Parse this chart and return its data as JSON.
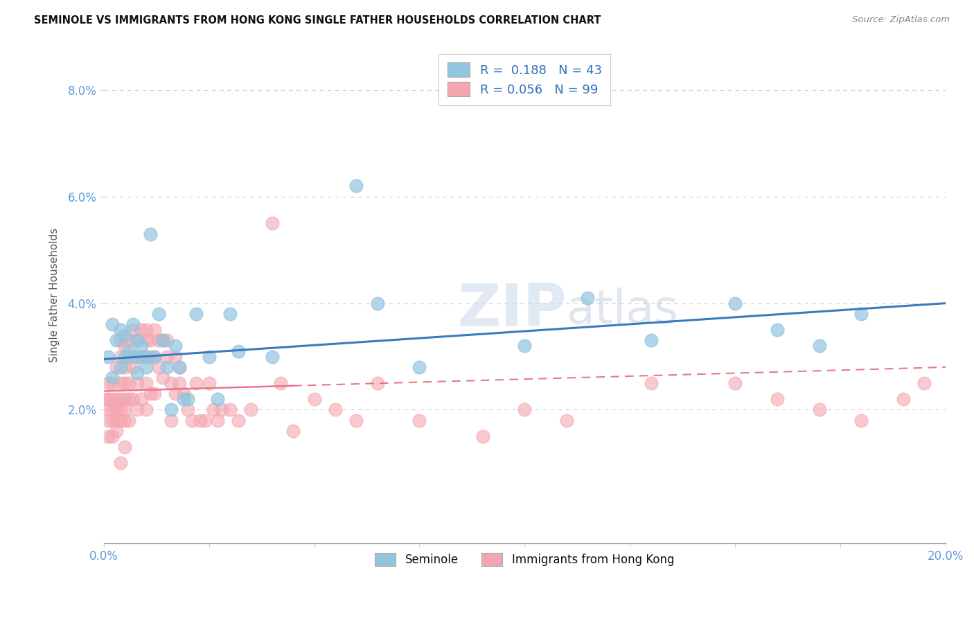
{
  "title": "SEMINOLE VS IMMIGRANTS FROM HONG KONG SINGLE FATHER HOUSEHOLDS CORRELATION CHART",
  "source": "Source: ZipAtlas.com",
  "ylabel": "Single Father Households",
  "xlim": [
    0.0,
    0.2
  ],
  "ylim": [
    -0.005,
    0.088
  ],
  "yticks": [
    0.02,
    0.04,
    0.06,
    0.08
  ],
  "ytick_labels": [
    "2.0%",
    "4.0%",
    "6.0%",
    "8.0%"
  ],
  "xticks": [
    0.0,
    0.025,
    0.05,
    0.075,
    0.1,
    0.125,
    0.15,
    0.175,
    0.2
  ],
  "legend_r_blue": "R =  0.188",
  "legend_n_blue": "N = 43",
  "legend_r_pink": "R = 0.056",
  "legend_n_pink": "N = 99",
  "seminole_color": "#92c5de",
  "immigrants_color": "#f4a6b0",
  "trend_blue_color": "#3a7bbf",
  "trend_pink_color": "#e8768a",
  "watermark_color": "#d0dde8",
  "seminole_x": [
    0.001,
    0.002,
    0.002,
    0.003,
    0.004,
    0.004,
    0.005,
    0.005,
    0.006,
    0.007,
    0.007,
    0.008,
    0.008,
    0.009,
    0.009,
    0.01,
    0.01,
    0.011,
    0.012,
    0.013,
    0.014,
    0.015,
    0.016,
    0.017,
    0.018,
    0.019,
    0.02,
    0.022,
    0.025,
    0.027,
    0.03,
    0.032,
    0.04,
    0.06,
    0.065,
    0.075,
    0.1,
    0.115,
    0.13,
    0.15,
    0.16,
    0.17,
    0.18
  ],
  "seminole_y": [
    0.03,
    0.036,
    0.026,
    0.033,
    0.035,
    0.028,
    0.034,
    0.03,
    0.031,
    0.036,
    0.03,
    0.033,
    0.027,
    0.032,
    0.03,
    0.03,
    0.028,
    0.053,
    0.03,
    0.038,
    0.033,
    0.028,
    0.02,
    0.032,
    0.028,
    0.022,
    0.022,
    0.038,
    0.03,
    0.022,
    0.038,
    0.031,
    0.03,
    0.062,
    0.04,
    0.028,
    0.032,
    0.041,
    0.033,
    0.04,
    0.035,
    0.032,
    0.038
  ],
  "immigrants_x": [
    0.0005,
    0.001,
    0.001,
    0.001,
    0.001,
    0.001,
    0.002,
    0.002,
    0.002,
    0.002,
    0.002,
    0.003,
    0.003,
    0.003,
    0.003,
    0.003,
    0.004,
    0.004,
    0.004,
    0.004,
    0.004,
    0.004,
    0.004,
    0.005,
    0.005,
    0.005,
    0.005,
    0.005,
    0.005,
    0.005,
    0.006,
    0.006,
    0.006,
    0.006,
    0.006,
    0.007,
    0.007,
    0.007,
    0.008,
    0.008,
    0.008,
    0.008,
    0.009,
    0.009,
    0.009,
    0.01,
    0.01,
    0.01,
    0.01,
    0.01,
    0.011,
    0.011,
    0.011,
    0.012,
    0.012,
    0.012,
    0.013,
    0.013,
    0.014,
    0.014,
    0.015,
    0.015,
    0.016,
    0.016,
    0.017,
    0.017,
    0.018,
    0.018,
    0.019,
    0.02,
    0.021,
    0.022,
    0.023,
    0.024,
    0.025,
    0.026,
    0.027,
    0.028,
    0.03,
    0.032,
    0.035,
    0.04,
    0.042,
    0.045,
    0.05,
    0.055,
    0.06,
    0.065,
    0.075,
    0.09,
    0.1,
    0.11,
    0.13,
    0.15,
    0.16,
    0.17,
    0.18,
    0.19,
    0.195
  ],
  "immigrants_y": [
    0.022,
    0.018,
    0.022,
    0.025,
    0.02,
    0.015,
    0.022,
    0.018,
    0.02,
    0.025,
    0.015,
    0.022,
    0.028,
    0.02,
    0.018,
    0.016,
    0.033,
    0.03,
    0.025,
    0.022,
    0.02,
    0.018,
    0.01,
    0.032,
    0.028,
    0.025,
    0.022,
    0.02,
    0.018,
    0.013,
    0.033,
    0.03,
    0.025,
    0.022,
    0.018,
    0.035,
    0.028,
    0.022,
    0.033,
    0.03,
    0.025,
    0.02,
    0.035,
    0.03,
    0.022,
    0.035,
    0.033,
    0.03,
    0.025,
    0.02,
    0.033,
    0.03,
    0.023,
    0.035,
    0.03,
    0.023,
    0.033,
    0.028,
    0.033,
    0.026,
    0.033,
    0.03,
    0.025,
    0.018,
    0.03,
    0.023,
    0.028,
    0.025,
    0.023,
    0.02,
    0.018,
    0.025,
    0.018,
    0.018,
    0.025,
    0.02,
    0.018,
    0.02,
    0.02,
    0.018,
    0.02,
    0.055,
    0.025,
    0.016,
    0.022,
    0.02,
    0.018,
    0.025,
    0.018,
    0.015,
    0.02,
    0.018,
    0.025,
    0.025,
    0.022,
    0.02,
    0.018,
    0.022,
    0.025
  ]
}
